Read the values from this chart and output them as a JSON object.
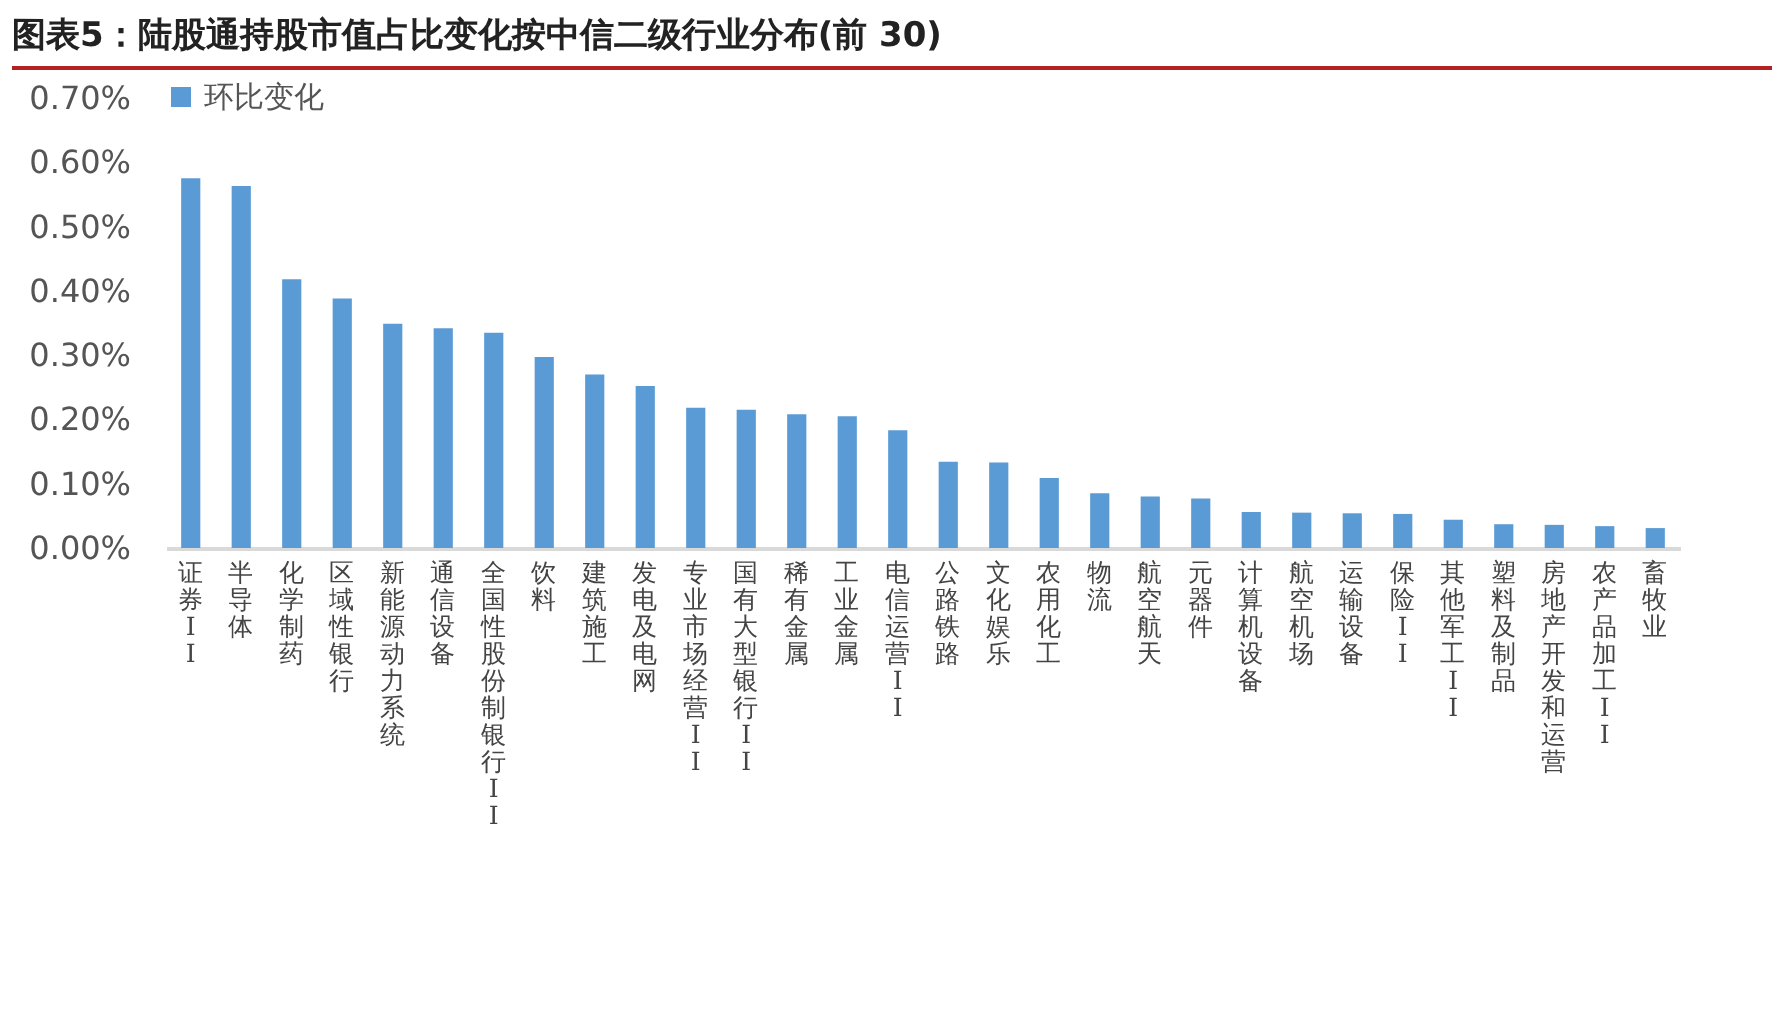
{
  "chart_data": {
    "type": "bar",
    "title": "图表5：陆股通持股市值占比变化按中信二级行业分布(前 30)",
    "categories": [
      "证券II",
      "半导体",
      "化学制药",
      "区域性银行",
      "新能源动力系统",
      "通信设备",
      "全国性股份制银行II",
      "饮料",
      "建筑施工",
      "发电及电网",
      "专业市场经营II",
      "国有大型银行II",
      "稀有金属",
      "工业金属",
      "电信运营II",
      "公路铁路",
      "文化娱乐",
      "农用化工",
      "物流",
      "航空航天",
      "元器件",
      "计算机设备",
      "航空机场",
      "运输设备",
      "保险II",
      "其他军工II",
      "塑料及制品",
      "房地产开发和运营",
      "农产品加工II",
      "畜牧业"
    ],
    "series": [
      {
        "name": "环比变化",
        "color": "#5b9bd5",
        "values": [
          0.575,
          0.563,
          0.418,
          0.388,
          0.349,
          0.342,
          0.335,
          0.297,
          0.27,
          0.252,
          0.218,
          0.215,
          0.208,
          0.205,
          0.183,
          0.134,
          0.133,
          0.109,
          0.085,
          0.08,
          0.077,
          0.056,
          0.055,
          0.054,
          0.053,
          0.044,
          0.037,
          0.036,
          0.034,
          0.031
        ]
      }
    ],
    "ylim": [
      0,
      0.7
    ],
    "yticks": [
      {
        "value": 0,
        "label": "0.00%"
      },
      {
        "value": 0.1,
        "label": "0.10%"
      },
      {
        "value": 0.2,
        "label": "0.20%"
      },
      {
        "value": 0.3,
        "label": "0.30%"
      },
      {
        "value": 0.4,
        "label": "0.40%"
      },
      {
        "value": 0.5,
        "label": "0.50%"
      },
      {
        "value": 0.6,
        "label": "0.60%"
      },
      {
        "value": 0.7,
        "label": "0.70%"
      }
    ],
    "grid": false,
    "legend": "top"
  }
}
